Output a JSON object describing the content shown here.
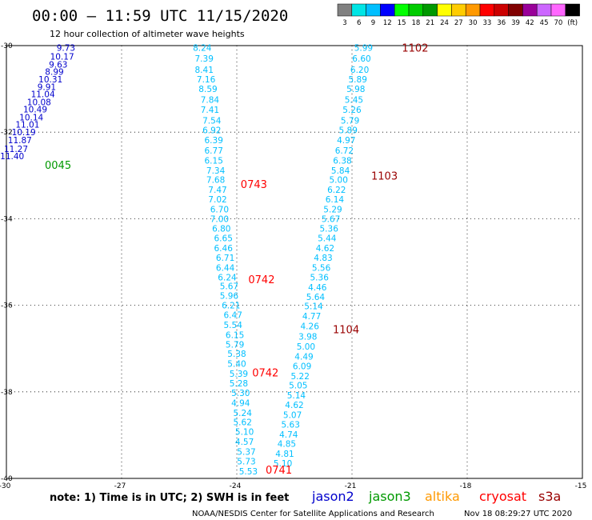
{
  "header": {
    "title": "00:00 – 11:59 UTC 11/15/2020",
    "subtitle": "12 hour collection of altimeter wave heights"
  },
  "color_scale": {
    "labels": [
      "3",
      "6",
      "9",
      "12",
      "15",
      "18",
      "21",
      "24",
      "27",
      "30",
      "33",
      "36",
      "39",
      "42",
      "45",
      "70",
      "(ft)"
    ],
    "colors": [
      "#808080",
      "#00e5e5",
      "#00bfff",
      "#0000ff",
      "#00ff00",
      "#00cc00",
      "#009900",
      "#ffff00",
      "#ffcc00",
      "#ff9900",
      "#ff0000",
      "#cc0000",
      "#800000",
      "#990099",
      "#cc66ff",
      "#ff66ff",
      "#000000"
    ]
  },
  "footer": {
    "note": "note: 1) Time is in UTC; 2) SWH is in feet",
    "credit": "NOAA/NESDIS Center for Satellite Applications and Research",
    "timestamp": "Nov 18 08:29:27 UTC 2020"
  },
  "legend": [
    {
      "label": "jason2",
      "color": "#0000cc"
    },
    {
      "label": "jason3",
      "color": "#009900"
    },
    {
      "label": "altika",
      "color": "#ff9900"
    },
    {
      "label": "cryosat",
      "color": "#ff0000"
    },
    {
      "label": "s3a",
      "color": "#990000"
    }
  ],
  "chart_data": {
    "type": "scatter",
    "title": "00:00 – 11:59 UTC 11/15/2020",
    "subtitle": "12 hour collection of altimeter wave heights",
    "x_ticks": [
      "-30",
      "-27",
      "-24",
      "-21",
      "-18",
      "-15"
    ],
    "y_ticks": [
      "-30",
      "-32",
      "-34",
      "-36",
      "-38",
      "-40"
    ],
    "xlim": [
      -30,
      -15
    ],
    "ylim": [
      -40,
      -30
    ],
    "grid": true,
    "series": [
      {
        "name": "jason3",
        "color": "#0000cc",
        "pass_labels": [
          {
            "text": "0045",
            "x": -29.0,
            "y": -32.75,
            "color": "#009900"
          }
        ],
        "points": [
          {
            "x": -28.45,
            "y": -30.05,
            "v": "9.73"
          },
          {
            "x": -28.55,
            "y": -30.25,
            "v": "10.17"
          },
          {
            "x": -28.65,
            "y": -30.43,
            "v": "9.63"
          },
          {
            "x": -28.75,
            "y": -30.6,
            "v": "8.99"
          },
          {
            "x": -28.85,
            "y": -30.78,
            "v": "10.31"
          },
          {
            "x": -28.95,
            "y": -30.95,
            "v": "9.91"
          },
          {
            "x": -29.05,
            "y": -31.12,
            "v": "11.04"
          },
          {
            "x": -29.15,
            "y": -31.3,
            "v": "10.08"
          },
          {
            "x": -29.25,
            "y": -31.47,
            "v": "10.49"
          },
          {
            "x": -29.35,
            "y": -31.65,
            "v": "10.14"
          },
          {
            "x": -29.45,
            "y": -31.82,
            "v": "11.01"
          },
          {
            "x": -29.55,
            "y": -32.0,
            "v": "10.19"
          },
          {
            "x": -29.65,
            "y": -32.18,
            "v": "11.87"
          },
          {
            "x": -29.75,
            "y": -32.38,
            "v": "11.27"
          },
          {
            "x": -29.85,
            "y": -32.55,
            "v": "11.40"
          }
        ]
      },
      {
        "name": "cryosat",
        "color": "#00bfff",
        "pass_labels": [
          {
            "text": "0743",
            "x": -23.9,
            "y": -33.2,
            "color": "#ff0000"
          },
          {
            "text": "0742",
            "x": -23.7,
            "y": -35.4,
            "color": "#ff0000"
          },
          {
            "text": "0742",
            "x": -23.6,
            "y": -37.55,
            "color": "#ff0000"
          },
          {
            "text": "0741",
            "x": -23.25,
            "y": -39.8,
            "color": "#ff0000"
          }
        ],
        "points": [
          {
            "x": -24.9,
            "y": -30.05,
            "v": "8.24"
          },
          {
            "x": -24.85,
            "y": -30.3,
            "v": "7.39"
          },
          {
            "x": -24.85,
            "y": -30.55,
            "v": "8.41"
          },
          {
            "x": -24.8,
            "y": -30.78,
            "v": "7.16"
          },
          {
            "x": -24.75,
            "y": -31.0,
            "v": "8.59"
          },
          {
            "x": -24.7,
            "y": -31.25,
            "v": "7.84"
          },
          {
            "x": -24.7,
            "y": -31.48,
            "v": "7.41"
          },
          {
            "x": -24.65,
            "y": -31.73,
            "v": "7.54"
          },
          {
            "x": -24.65,
            "y": -31.95,
            "v": "6.92"
          },
          {
            "x": -24.6,
            "y": -32.18,
            "v": "6.39"
          },
          {
            "x": -24.6,
            "y": -32.42,
            "v": "6.77"
          },
          {
            "x": -24.6,
            "y": -32.65,
            "v": "6.15"
          },
          {
            "x": -24.55,
            "y": -32.88,
            "v": "7.34"
          },
          {
            "x": -24.55,
            "y": -33.1,
            "v": "7.68"
          },
          {
            "x": -24.5,
            "y": -33.33,
            "v": "7.47"
          },
          {
            "x": -24.5,
            "y": -33.55,
            "v": "7.02"
          },
          {
            "x": -24.45,
            "y": -33.78,
            "v": "6.70"
          },
          {
            "x": -24.45,
            "y": -34.0,
            "v": "7.00"
          },
          {
            "x": -24.4,
            "y": -34.22,
            "v": "6.80"
          },
          {
            "x": -24.35,
            "y": -34.45,
            "v": "6.65"
          },
          {
            "x": -24.35,
            "y": -34.68,
            "v": "6.46"
          },
          {
            "x": -24.3,
            "y": -34.9,
            "v": "6.71"
          },
          {
            "x": -24.3,
            "y": -35.13,
            "v": "6.44"
          },
          {
            "x": -24.25,
            "y": -35.35,
            "v": "6.24"
          },
          {
            "x": -24.2,
            "y": -35.55,
            "v": "5.67"
          },
          {
            "x": -24.2,
            "y": -35.78,
            "v": "5.96"
          },
          {
            "x": -24.15,
            "y": -36.0,
            "v": "6.21"
          },
          {
            "x": -24.1,
            "y": -36.22,
            "v": "6.47"
          },
          {
            "x": -24.1,
            "y": -36.45,
            "v": "5.54"
          },
          {
            "x": -24.05,
            "y": -36.68,
            "v": "6.15"
          },
          {
            "x": -24.05,
            "y": -36.9,
            "v": "5.79"
          },
          {
            "x": -24.0,
            "y": -37.12,
            "v": "5.38"
          },
          {
            "x": -24.0,
            "y": -37.35,
            "v": "5.40"
          },
          {
            "x": -23.95,
            "y": -37.58,
            "v": "5.39"
          },
          {
            "x": -23.95,
            "y": -37.8,
            "v": "5.28"
          },
          {
            "x": -23.9,
            "y": -38.02,
            "v": "5.30"
          },
          {
            "x": -23.9,
            "y": -38.25,
            "v": "4.94"
          },
          {
            "x": -23.85,
            "y": -38.48,
            "v": "5.24"
          },
          {
            "x": -23.85,
            "y": -38.7,
            "v": "5.62"
          },
          {
            "x": -23.8,
            "y": -38.92,
            "v": "5.10"
          },
          {
            "x": -23.8,
            "y": -39.15,
            "v": "4.57"
          },
          {
            "x": -23.75,
            "y": -39.38,
            "v": "5.37"
          },
          {
            "x": -23.75,
            "y": -39.6,
            "v": "5.73"
          },
          {
            "x": -23.7,
            "y": -39.83,
            "v": "5.53"
          }
        ]
      },
      {
        "name": "s3a",
        "color": "#00bfff",
        "pass_labels": [
          {
            "text": "1102",
            "x": -19.7,
            "y": -30.05,
            "color": "#990000"
          },
          {
            "text": "1103",
            "x": -20.5,
            "y": -33.0,
            "color": "#990000"
          },
          {
            "text": "1104",
            "x": -21.5,
            "y": -36.55,
            "color": "#990000"
          }
        ],
        "points": [
          {
            "x": -20.7,
            "y": -30.05,
            "v": "5.99"
          },
          {
            "x": -20.75,
            "y": -30.3,
            "v": "6.60"
          },
          {
            "x": -20.8,
            "y": -30.55,
            "v": "6.20"
          },
          {
            "x": -20.85,
            "y": -30.78,
            "v": "5.89"
          },
          {
            "x": -20.9,
            "y": -31.0,
            "v": "5.98"
          },
          {
            "x": -20.95,
            "y": -31.25,
            "v": "5.45"
          },
          {
            "x": -21.0,
            "y": -31.48,
            "v": "5.26"
          },
          {
            "x": -21.05,
            "y": -31.73,
            "v": "5.79"
          },
          {
            "x": -21.1,
            "y": -31.95,
            "v": "5.89"
          },
          {
            "x": -21.15,
            "y": -32.18,
            "v": "4.97"
          },
          {
            "x": -21.2,
            "y": -32.42,
            "v": "6.72"
          },
          {
            "x": -21.25,
            "y": -32.65,
            "v": "6.38"
          },
          {
            "x": -21.3,
            "y": -32.88,
            "v": "5.84"
          },
          {
            "x": -21.35,
            "y": -33.1,
            "v": "5.00"
          },
          {
            "x": -21.4,
            "y": -33.33,
            "v": "6.22"
          },
          {
            "x": -21.45,
            "y": -33.55,
            "v": "6.14"
          },
          {
            "x": -21.5,
            "y": -33.78,
            "v": "5.29"
          },
          {
            "x": -21.55,
            "y": -34.0,
            "v": "5.67"
          },
          {
            "x": -21.6,
            "y": -34.22,
            "v": "5.36"
          },
          {
            "x": -21.65,
            "y": -34.45,
            "v": "5.44"
          },
          {
            "x": -21.7,
            "y": -34.68,
            "v": "4.62"
          },
          {
            "x": -21.75,
            "y": -34.9,
            "v": "4.83"
          },
          {
            "x": -21.8,
            "y": -35.13,
            "v": "5.56"
          },
          {
            "x": -21.85,
            "y": -35.35,
            "v": "5.36"
          },
          {
            "x": -21.9,
            "y": -35.58,
            "v": "4.46"
          },
          {
            "x": -21.95,
            "y": -35.8,
            "v": "5.64"
          },
          {
            "x": -22.0,
            "y": -36.02,
            "v": "5.14"
          },
          {
            "x": -22.05,
            "y": -36.25,
            "v": "4.77"
          },
          {
            "x": -22.1,
            "y": -36.48,
            "v": "4.26"
          },
          {
            "x": -22.15,
            "y": -36.72,
            "v": "3.98"
          },
          {
            "x": -22.2,
            "y": -36.95,
            "v": "5.00"
          },
          {
            "x": -22.25,
            "y": -37.18,
            "v": "4.49"
          },
          {
            "x": -22.3,
            "y": -37.4,
            "v": "6.09"
          },
          {
            "x": -22.35,
            "y": -37.63,
            "v": "5.22"
          },
          {
            "x": -22.4,
            "y": -37.85,
            "v": "5.05"
          },
          {
            "x": -22.45,
            "y": -38.08,
            "v": "5.14"
          },
          {
            "x": -22.5,
            "y": -38.3,
            "v": "4.62"
          },
          {
            "x": -22.55,
            "y": -38.53,
            "v": "5.07"
          },
          {
            "x": -22.6,
            "y": -38.75,
            "v": "5.63"
          },
          {
            "x": -22.65,
            "y": -38.98,
            "v": "4.74"
          },
          {
            "x": -22.7,
            "y": -39.2,
            "v": "4.85"
          },
          {
            "x": -22.75,
            "y": -39.43,
            "v": "4.81"
          },
          {
            "x": -22.8,
            "y": -39.65,
            "v": "5.10"
          }
        ]
      }
    ]
  }
}
